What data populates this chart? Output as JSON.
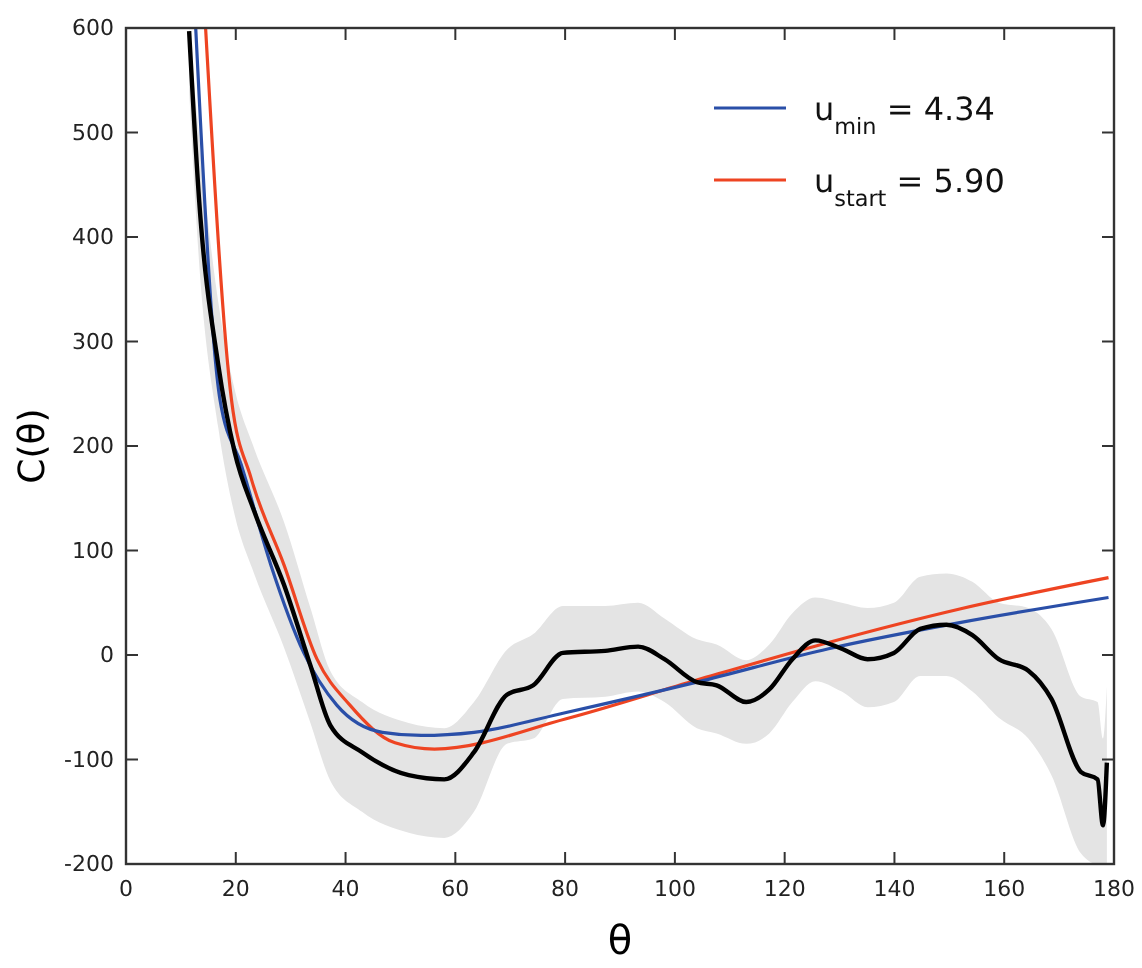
{
  "chart_data": {
    "type": "line",
    "xlabel": "θ",
    "ylabel": "C(θ)",
    "xlim": [
      0,
      180
    ],
    "ylim": [
      -200,
      600
    ],
    "xticks": [
      0,
      20,
      40,
      60,
      80,
      100,
      120,
      140,
      160,
      180
    ],
    "yticks": [
      -200,
      -100,
      0,
      100,
      200,
      300,
      400,
      500,
      600
    ],
    "grid": false,
    "legend": "top right",
    "line_style": "solid",
    "marker": "none",
    "series": [
      {
        "color": "#000000",
        "x": [
          11.5,
          13.3,
          16.8,
          19.8,
          23.4,
          28.8,
          33.6,
          37.2,
          43,
          51.5,
          58,
          63.4,
          69.4,
          74.2,
          79.6,
          87.3,
          93.3,
          98.1,
          104,
          107.6,
          113,
          117.2,
          121.4,
          125.6,
          130.4,
          135.1,
          139.9,
          144.7,
          149.5,
          154.2,
          159,
          164.4,
          168.6,
          174,
          177,
          178,
          178.7
        ],
        "values": [
          597,
          437,
          278,
          194,
          137,
          67,
          -10,
          -67,
          -93,
          -115,
          -119,
          -93,
          -38,
          -29,
          2,
          4,
          8,
          -4,
          -26,
          -29,
          -45,
          -33,
          -4,
          14,
          6,
          -4,
          2,
          25,
          29,
          19,
          -4,
          -15,
          -42,
          -112,
          -119,
          -163,
          -103
        ],
        "upper": [
          600,
          497,
          338,
          254,
          197,
          127,
          45,
          -15,
          -45,
          -65,
          -70,
          -45,
          5,
          20,
          47,
          47,
          50,
          35,
          15,
          10,
          -5,
          10,
          40,
          55,
          50,
          45,
          50,
          75,
          78,
          70,
          50,
          45,
          25,
          -40,
          -45,
          -80,
          -30
        ],
        "lower": [
          540,
          377,
          218,
          134,
          77,
          7,
          -65,
          -120,
          -150,
          -170,
          -175,
          -150,
          -85,
          -80,
          -42,
          -40,
          -35,
          -45,
          -70,
          -75,
          -85,
          -75,
          -45,
          -25,
          -35,
          -50,
          -45,
          -20,
          -20,
          -35,
          -60,
          -80,
          -115,
          -190,
          -200,
          -200,
          -200
        ]
      },
      {
        "name": "u$_{min}$ = 4.34",
        "color": "#2a4fa8",
        "x": [
          12.7,
          17.1,
          21,
          26.4,
          32.4,
          38.4,
          46.7,
          53.8,
          63.4,
          80.2,
          104,
          128,
          151.9,
          179
        ],
        "values": [
          600,
          245,
          182,
          86,
          2,
          -48,
          -74,
          -77,
          -74,
          -55,
          -26,
          6,
          31,
          55
        ]
      },
      {
        "name": "u$_{start}$ = 5.90",
        "color": "#ee4422",
        "x": [
          14.5,
          19.2,
          22.8,
          28.8,
          34.8,
          40.8,
          49,
          56.2,
          80.2,
          104,
          128,
          151.9,
          179
        ],
        "values": [
          600,
          245,
          169,
          86,
          -4,
          -48,
          -84,
          -90,
          -61,
          -24,
          12,
          44,
          74
        ]
      }
    ]
  }
}
